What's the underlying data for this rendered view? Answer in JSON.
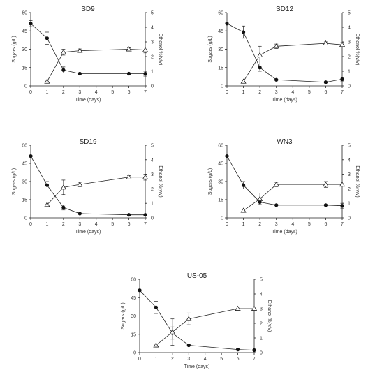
{
  "figure": {
    "chart_data": [
      {
        "type": "line",
        "title": "SD9",
        "xlabel": "Time (days)",
        "ylabel": "Sugars (g/L)",
        "y2label": "Ethanol %(v/v)",
        "xlim": [
          0,
          7
        ],
        "ylim": [
          0,
          60
        ],
        "y2lim": [
          0,
          5
        ],
        "xticks": [
          "0",
          "1",
          "2",
          "3",
          "4",
          "5",
          "6",
          "7"
        ],
        "yticks": [
          "0",
          "15",
          "30",
          "45",
          "60"
        ],
        "y2ticks": [
          "0",
          "1",
          "2",
          "3",
          "4",
          "5"
        ],
        "series": [
          {
            "marker": "filled-circle",
            "axis": "left",
            "x": [
              0,
              1,
              2,
              3,
              6,
              7
            ],
            "values": [
              51,
              39,
              13,
              10,
              10,
              10
            ],
            "err": [
              2.5,
              5,
              2.5,
              0.5,
              0.5,
              2
            ]
          },
          {
            "marker": "open-triangle",
            "axis": "right",
            "x": [
              1,
              2,
              3,
              6,
              7
            ],
            "values": [
              0.3,
              2.3,
              2.4,
              2.5,
              2.45
            ],
            "err": [
              0,
              0.2,
              0.12,
              0.1,
              0.2
            ]
          }
        ]
      },
      {
        "type": "line",
        "title": "SD12",
        "xlabel": "Time (days)",
        "ylabel": "Sugars (g/L)",
        "y2label": "Ethanol %(v/v)",
        "xlim": [
          0,
          7
        ],
        "ylim": [
          0,
          60
        ],
        "y2lim": [
          0,
          5
        ],
        "xticks": [
          "0",
          "1",
          "2",
          "3",
          "4",
          "5",
          "6",
          "7"
        ],
        "yticks": [
          "0",
          "15",
          "30",
          "45",
          "60"
        ],
        "y2ticks": [
          "0",
          "1",
          "2",
          "3",
          "4",
          "5"
        ],
        "series": [
          {
            "marker": "filled-circle",
            "axis": "left",
            "x": [
              0,
              1,
              2,
              3,
              6,
              7
            ],
            "values": [
              51,
              44,
              15,
              5,
              3,
              5.5
            ],
            "err": [
              0.5,
              5,
              3,
              0.5,
              0.5,
              1.5
            ]
          },
          {
            "marker": "open-triangle",
            "axis": "right",
            "x": [
              1,
              2,
              3,
              6,
              7
            ],
            "values": [
              0.3,
              2.1,
              2.7,
              2.9,
              2.8
            ],
            "err": [
              0,
              0.6,
              0.15,
              0.1,
              0.15
            ]
          }
        ]
      },
      {
        "type": "line",
        "title": "SD19",
        "xlabel": "Time (days)",
        "ylabel": "Sugars (g/L)",
        "y2label": "Ethanol %(v/v)",
        "xlim": [
          0,
          7
        ],
        "ylim": [
          0,
          60
        ],
        "y2lim": [
          0,
          5
        ],
        "xticks": [
          "0",
          "1",
          "2",
          "3",
          "4",
          "5",
          "6",
          "7"
        ],
        "yticks": [
          "0",
          "15",
          "30",
          "45",
          "60"
        ],
        "y2ticks": [
          "0",
          "1",
          "2",
          "3",
          "4",
          "5"
        ],
        "series": [
          {
            "marker": "filled-circle",
            "axis": "left",
            "x": [
              0,
              1,
              2,
              3,
              6,
              7
            ],
            "values": [
              51,
              27,
              8.5,
              3.5,
              2.5,
              2.5
            ],
            "err": [
              0.5,
              3,
              2,
              0.5,
              0.5,
              0.5
            ]
          },
          {
            "marker": "open-triangle",
            "axis": "right",
            "x": [
              1,
              2,
              3,
              6,
              7
            ],
            "values": [
              0.9,
              2.1,
              2.3,
              2.8,
              2.8
            ],
            "err": [
              0,
              0.5,
              0.15,
              0.1,
              0.2
            ]
          }
        ]
      },
      {
        "type": "line",
        "title": "WN3",
        "xlabel": "Time (days)",
        "ylabel": "Sugars (g/L)",
        "y2label": "Ethanol %(v/v)",
        "xlim": [
          0,
          7
        ],
        "ylim": [
          0,
          60
        ],
        "y2lim": [
          0,
          5
        ],
        "xticks": [
          "0",
          "1",
          "2",
          "3",
          "4",
          "5",
          "6",
          "7"
        ],
        "yticks": [
          "0",
          "15",
          "30",
          "45",
          "60"
        ],
        "y2ticks": [
          "0",
          "1",
          "2",
          "3",
          "4",
          "5"
        ],
        "series": [
          {
            "marker": "filled-circle",
            "axis": "left",
            "x": [
              0,
              1,
              2,
              3,
              6,
              7
            ],
            "values": [
              51,
              27,
              13,
              10.5,
              10.5,
              10
            ],
            "err": [
              0.5,
              3,
              2,
              0.5,
              0.5,
              2
            ]
          },
          {
            "marker": "open-triangle",
            "axis": "right",
            "x": [
              1,
              2,
              3,
              6,
              7
            ],
            "values": [
              0.5,
              1.3,
              2.3,
              2.3,
              2.3
            ],
            "err": [
              0,
              0.4,
              0.15,
              0.2,
              0
            ]
          }
        ]
      },
      {
        "type": "line",
        "title": "US-05",
        "xlabel": "Time (days)",
        "ylabel": "Sugars (g/L)",
        "y2label": "Ethanol %(v/v)",
        "xlim": [
          0,
          7
        ],
        "ylim": [
          0,
          60
        ],
        "y2lim": [
          0,
          5
        ],
        "xticks": [
          "0",
          "1",
          "2",
          "3",
          "4",
          "5",
          "6",
          "7"
        ],
        "yticks": [
          "0",
          "15",
          "30",
          "45",
          "60"
        ],
        "y2ticks": [
          "0",
          "1",
          "2",
          "3",
          "4",
          "5"
        ],
        "series": [
          {
            "marker": "filled-circle",
            "axis": "left",
            "x": [
              0,
              1,
              2,
              3,
              6,
              7
            ],
            "values": [
              51,
              37,
              16,
              6,
              2.5,
              2
            ],
            "err": [
              0.5,
              5,
              5,
              0.5,
              0.5,
              0.5
            ]
          },
          {
            "marker": "open-triangle",
            "axis": "right",
            "x": [
              1,
              2,
              3,
              6,
              7
            ],
            "values": [
              0.5,
              1.4,
              2.3,
              3.0,
              3.0
            ],
            "err": [
              0,
              0.9,
              0.4,
              0,
              0
            ]
          }
        ]
      }
    ]
  }
}
